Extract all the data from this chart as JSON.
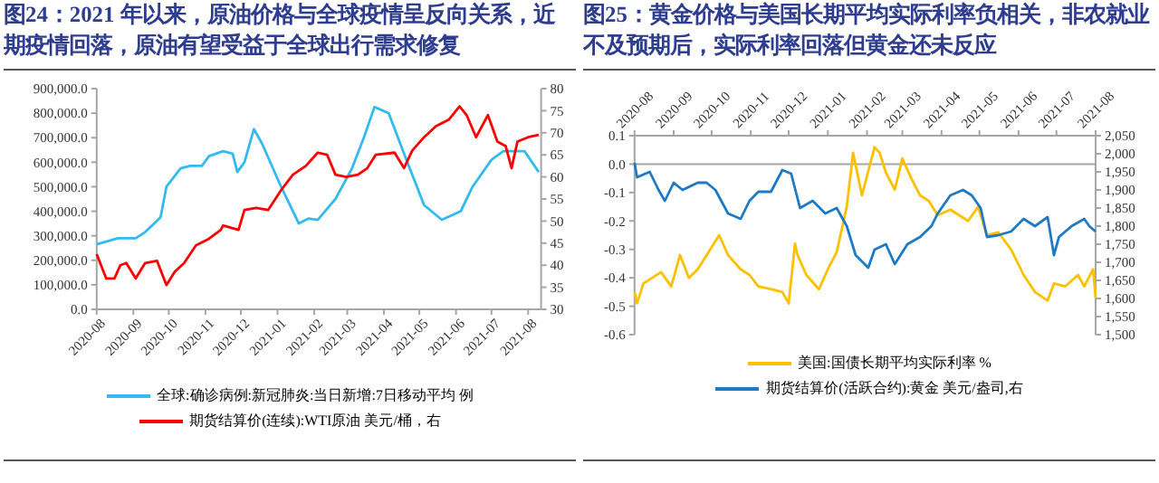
{
  "chart_data": [
    {
      "type": "line",
      "title": "图24：2021 年以来，原油价格与全球疫情呈反向关系，近期疫情回落，原油有望受益于全球出行需求修复",
      "legend": "bottom",
      "grid": false,
      "xlim": [
        "2020-08-01",
        "2021-08-12"
      ],
      "xticks": [
        "2020-08",
        "2020-09",
        "2020-10",
        "2020-11",
        "2020-12",
        "2021-01",
        "2021-02",
        "2021-03",
        "2021-04",
        "2021-05",
        "2021-06",
        "2021-07",
        "2021-08"
      ],
      "ylim": [
        0,
        900000
      ],
      "yticks": [
        {
          "value": 0,
          "label": "0.0"
        },
        {
          "value": 100000,
          "label": "100,000.0"
        },
        {
          "value": 200000,
          "label": "200,000.0"
        },
        {
          "value": 300000,
          "label": "300,000.0"
        },
        {
          "value": 400000,
          "label": "400,000.0"
        },
        {
          "value": 500000,
          "label": "500,000.0"
        },
        {
          "value": 600000,
          "label": "600,000.0"
        },
        {
          "value": 700000,
          "label": "700,000.0"
        },
        {
          "value": 800000,
          "label": "800,000.0"
        },
        {
          "value": 900000,
          "label": "900,000.0"
        }
      ],
      "y2lim": [
        30,
        80
      ],
      "y2ticks": [
        30,
        35,
        40,
        45,
        50,
        55,
        60,
        65,
        70,
        75,
        80
      ],
      "series": [
        {
          "name": "全球:确诊病例:新冠肺炎:当日新增:7日移动平均 例",
          "color": "#33bbee",
          "x": [
            "2020-08-01",
            "2020-08-19",
            "2020-09-03",
            "2020-09-11",
            "2020-09-24",
            "2020-09-29",
            "2020-10-11",
            "2020-10-19",
            "2020-10-29",
            "2020-11-04",
            "2020-11-16",
            "2020-11-24",
            "2020-11-28",
            "2020-12-04",
            "2020-12-12",
            "2020-12-19",
            "2021-01-04",
            "2021-01-19",
            "2021-01-27",
            "2021-02-04",
            "2021-02-19",
            "2021-03-05",
            "2021-03-15",
            "2021-03-24",
            "2021-04-05",
            "2021-04-18",
            "2021-05-05",
            "2021-05-20",
            "2021-06-05",
            "2021-06-15",
            "2021-07-01",
            "2021-07-11",
            "2021-07-29",
            "2021-08-10"
          ],
          "values": [
            265000,
            290000,
            290000,
            315000,
            375000,
            500000,
            575000,
            585000,
            585000,
            625000,
            645000,
            635000,
            560000,
            600000,
            735000,
            675000,
            500000,
            350000,
            370000,
            365000,
            450000,
            575000,
            700000,
            825000,
            800000,
            635000,
            425000,
            365000,
            400000,
            500000,
            610000,
            645000,
            645000,
            560000
          ]
        },
        {
          "name": "期货结算价(连续):WTI原油 美元/桶，右",
          "color": "#ff0000",
          "axis": "y2",
          "x": [
            "2020-08-01",
            "2020-08-09",
            "2020-08-16",
            "2020-08-21",
            "2020-08-26",
            "2020-09-03",
            "2020-09-11",
            "2020-09-21",
            "2020-09-29",
            "2020-10-06",
            "2020-10-14",
            "2020-10-24",
            "2020-11-04",
            "2020-11-14",
            "2020-11-16",
            "2020-11-29",
            "2020-12-04",
            "2020-12-14",
            "2020-12-24",
            "2021-01-04",
            "2021-01-14",
            "2021-01-25",
            "2021-02-04",
            "2021-02-12",
            "2021-02-19",
            "2021-02-28",
            "2021-03-10",
            "2021-03-18",
            "2021-03-25",
            "2021-04-10",
            "2021-04-18",
            "2021-04-25",
            "2021-05-05",
            "2021-05-15",
            "2021-05-26",
            "2021-06-04",
            "2021-06-10",
            "2021-06-18",
            "2021-06-28",
            "2021-07-06",
            "2021-07-13",
            "2021-07-18",
            "2021-07-23",
            "2021-08-01",
            "2021-08-10"
          ],
          "values": [
            42.5,
            37,
            37,
            40,
            40.5,
            37,
            40.5,
            41,
            35.5,
            38.5,
            40.5,
            44.5,
            46,
            48,
            49,
            48,
            52.5,
            53,
            52.5,
            57,
            60.5,
            62.5,
            65.5,
            65,
            60.5,
            60,
            60.5,
            62,
            65,
            65.5,
            62,
            66,
            69,
            71.5,
            73,
            76,
            74,
            69,
            74,
            68,
            67,
            62,
            68,
            69,
            69.5
          ]
        }
      ]
    },
    {
      "type": "line",
      "title": "图25：黄金价格与美国长期平均实际利率负相关，非农就业不及预期后，实际利率回落但黄金还未反应",
      "legend": "bottom",
      "grid": false,
      "xlim": [
        "2020-08-01",
        "2021-08-01"
      ],
      "xticks": [
        "2020-08",
        "2020-09",
        "2020-10",
        "2020-11",
        "2020-12",
        "2021-01",
        "2021-02",
        "2021-03",
        "2021-04",
        "2021-05",
        "2021-06",
        "2021-07",
        "2021-08"
      ],
      "ylim": [
        -0.6,
        0.1
      ],
      "yticks": [
        {
          "value": -0.6,
          "label": "-0.6"
        },
        {
          "value": -0.5,
          "label": "-0.5"
        },
        {
          "value": -0.4,
          "label": "-0.4"
        },
        {
          "value": -0.3,
          "label": "-0.3"
        },
        {
          "value": -0.2,
          "label": "-0.2"
        },
        {
          "value": -0.1,
          "label": "-0.1"
        },
        {
          "value": 0,
          "label": "0.0"
        },
        {
          "value": 0.1,
          "label": "0.1"
        }
      ],
      "y2lim": [
        1500,
        2050
      ],
      "y2ticks": [
        {
          "value": 1500,
          "label": "1,500"
        },
        {
          "value": 1550,
          "label": "1,550"
        },
        {
          "value": 1600,
          "label": "1,600"
        },
        {
          "value": 1650,
          "label": "1,650"
        },
        {
          "value": 1700,
          "label": "1,700"
        },
        {
          "value": 1750,
          "label": "1,750"
        },
        {
          "value": 1800,
          "label": "1,800"
        },
        {
          "value": 1850,
          "label": "1,850"
        },
        {
          "value": 1900,
          "label": "1,900"
        },
        {
          "value": 1950,
          "label": "1,950"
        },
        {
          "value": 2000,
          "label": "2,000"
        },
        {
          "value": 2050,
          "label": "2,050"
        }
      ],
      "ref_lines": [
        {
          "axis": "y",
          "value": 0,
          "color": "#a6a6a6"
        }
      ],
      "series": [
        {
          "name": "美国:国债长期平均实际利率 %",
          "color": "#ffc000",
          "x": [
            "2020-08-01",
            "2020-08-03",
            "2020-08-08",
            "2020-08-22",
            "2020-08-30",
            "2020-09-06",
            "2020-09-13",
            "2020-09-20",
            "2020-10-07",
            "2020-10-14",
            "2020-10-24",
            "2020-10-31",
            "2020-11-07",
            "2020-11-17",
            "2020-11-26",
            "2020-12-01",
            "2020-12-06",
            "2020-12-08",
            "2020-12-15",
            "2020-12-25",
            "2021-01-01",
            "2021-01-08",
            "2021-01-16",
            "2021-01-21",
            "2021-01-28",
            "2021-02-07",
            "2021-02-11",
            "2021-02-16",
            "2021-02-23",
            "2021-03-01",
            "2021-03-08",
            "2021-03-15",
            "2021-03-22",
            "2021-03-29",
            "2021-04-08",
            "2021-04-22",
            "2021-04-30",
            "2021-05-07",
            "2021-05-16",
            "2021-05-26",
            "2021-06-05",
            "2021-06-14",
            "2021-06-24",
            "2021-06-29",
            "2021-07-08",
            "2021-07-18",
            "2021-07-23",
            "2021-07-30",
            "2021-08-01"
          ],
          "values": [
            -0.45,
            -0.49,
            -0.42,
            -0.38,
            -0.43,
            -0.32,
            -0.4,
            -0.37,
            -0.25,
            -0.32,
            -0.37,
            -0.39,
            -0.43,
            -0.44,
            -0.45,
            -0.49,
            -0.28,
            -0.32,
            -0.39,
            -0.44,
            -0.37,
            -0.31,
            -0.15,
            0.04,
            -0.11,
            0.06,
            0.04,
            -0.03,
            -0.09,
            0.02,
            -0.05,
            -0.11,
            -0.13,
            -0.18,
            -0.16,
            -0.2,
            -0.15,
            -0.25,
            -0.24,
            -0.3,
            -0.39,
            -0.45,
            -0.48,
            -0.42,
            -0.43,
            -0.39,
            -0.43,
            -0.37,
            -0.47
          ]
        },
        {
          "name": "期货结算价(活跃合约):黄金 美元/盎司,右",
          "color": "#1f7ac4",
          "axis": "y2",
          "x": [
            "2020-08-01",
            "2020-08-03",
            "2020-08-13",
            "2020-08-20",
            "2020-08-25",
            "2020-09-01",
            "2020-09-08",
            "2020-09-20",
            "2020-09-27",
            "2020-10-04",
            "2020-10-14",
            "2020-10-24",
            "2020-10-31",
            "2020-11-07",
            "2020-11-17",
            "2020-11-26",
            "2020-12-03",
            "2020-12-10",
            "2020-12-20",
            "2020-12-30",
            "2021-01-08",
            "2021-01-16",
            "2021-01-23",
            "2021-02-02",
            "2021-02-07",
            "2021-02-16",
            "2021-02-23",
            "2021-03-05",
            "2021-03-15",
            "2021-03-24",
            "2021-03-29",
            "2021-04-08",
            "2021-04-18",
            "2021-04-25",
            "2021-05-02",
            "2021-05-07",
            "2021-05-16",
            "2021-05-26",
            "2021-06-05",
            "2021-06-14",
            "2021-06-24",
            "2021-06-29",
            "2021-07-03",
            "2021-07-13",
            "2021-07-23",
            "2021-07-27",
            "2021-08-01"
          ],
          "values": [
            1975,
            1935,
            1950,
            1900,
            1870,
            1920,
            1900,
            1920,
            1920,
            1900,
            1835,
            1820,
            1870,
            1895,
            1895,
            1955,
            1945,
            1850,
            1870,
            1835,
            1850,
            1800,
            1720,
            1685,
            1735,
            1750,
            1695,
            1750,
            1770,
            1800,
            1835,
            1885,
            1900,
            1885,
            1850,
            1770,
            1775,
            1785,
            1820,
            1800,
            1825,
            1720,
            1770,
            1800,
            1820,
            1800,
            1785
          ]
        }
      ]
    }
  ]
}
